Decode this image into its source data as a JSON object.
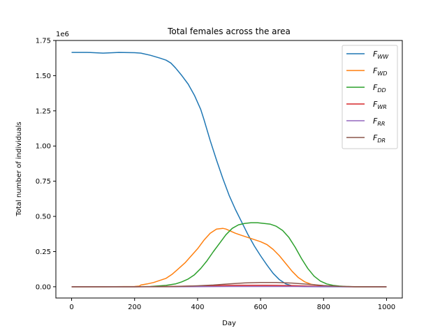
{
  "chart_data": {
    "type": "line",
    "title": "Total females across the area",
    "xlabel": "Day",
    "ylabel": "Total number of individuals",
    "y_multiplier_label": "1e6",
    "xlim": [
      -50,
      1050
    ],
    "ylim": [
      -0.08,
      1.75
    ],
    "x_ticks": [
      0,
      200,
      400,
      600,
      800,
      1000
    ],
    "y_ticks": [
      0.0,
      0.25,
      0.5,
      0.75,
      1.0,
      1.25,
      1.5,
      1.75
    ],
    "y_tick_labels": [
      "0.00",
      "0.25",
      "0.50",
      "0.75",
      "1.00",
      "1.25",
      "1.50",
      "1.75"
    ],
    "x_tick_labels": [
      "0",
      "200",
      "400",
      "600",
      "800",
      "1000"
    ],
    "grid": false,
    "legend_position": "top-right",
    "series": [
      {
        "name": "F_WW",
        "label_main": "F",
        "label_sub": "WW",
        "color": "#1f77b4",
        "x": [
          0,
          50,
          100,
          150,
          200,
          220,
          250,
          280,
          300,
          315,
          330,
          350,
          370,
          390,
          400,
          410,
          420,
          440,
          460,
          480,
          500,
          520,
          540,
          560,
          580,
          600,
          620,
          640,
          660,
          680,
          700,
          720,
          750,
          800,
          850,
          900,
          1000
        ],
        "y": [
          1.665,
          1.665,
          1.66,
          1.665,
          1.663,
          1.66,
          1.645,
          1.625,
          1.61,
          1.59,
          1.555,
          1.5,
          1.44,
          1.36,
          1.31,
          1.26,
          1.19,
          1.04,
          0.9,
          0.77,
          0.65,
          0.55,
          0.46,
          0.37,
          0.29,
          0.22,
          0.155,
          0.095,
          0.05,
          0.02,
          0.007,
          0.003,
          0.001,
          0.0,
          0.0,
          0.0,
          0.0
        ]
      },
      {
        "name": "F_WD",
        "label_main": "F",
        "label_sub": "WD",
        "color": "#ff7f0e",
        "x": [
          0,
          100,
          200,
          215,
          220,
          240,
          260,
          280,
          300,
          320,
          340,
          360,
          380,
          400,
          420,
          440,
          460,
          480,
          490,
          500,
          520,
          540,
          560,
          580,
          600,
          620,
          640,
          660,
          680,
          700,
          720,
          740,
          760,
          800,
          850,
          900,
          1000
        ],
        "y": [
          0.0,
          0.0,
          0.002,
          0.005,
          0.012,
          0.02,
          0.03,
          0.045,
          0.06,
          0.09,
          0.13,
          0.17,
          0.22,
          0.27,
          0.33,
          0.38,
          0.41,
          0.415,
          0.41,
          0.4,
          0.38,
          0.365,
          0.35,
          0.335,
          0.32,
          0.3,
          0.265,
          0.22,
          0.165,
          0.11,
          0.065,
          0.035,
          0.018,
          0.005,
          0.001,
          0.0,
          0.0
        ]
      },
      {
        "name": "F_DD",
        "label_main": "F",
        "label_sub": "DD",
        "color": "#2ca02c",
        "x": [
          0,
          100,
          200,
          250,
          300,
          330,
          350,
          370,
          390,
          410,
          430,
          450,
          470,
          490,
          510,
          530,
          550,
          570,
          590,
          610,
          630,
          650,
          670,
          690,
          710,
          730,
          750,
          770,
          790,
          810,
          830,
          850,
          870,
          900,
          950,
          1000
        ],
        "y": [
          0.0,
          0.0,
          0.0,
          0.002,
          0.01,
          0.02,
          0.035,
          0.055,
          0.085,
          0.13,
          0.185,
          0.25,
          0.31,
          0.37,
          0.415,
          0.44,
          0.45,
          0.455,
          0.455,
          0.45,
          0.445,
          0.43,
          0.4,
          0.35,
          0.28,
          0.2,
          0.13,
          0.075,
          0.04,
          0.02,
          0.01,
          0.005,
          0.002,
          0.0,
          0.0,
          0.0
        ]
      },
      {
        "name": "F_WR",
        "label_main": "F",
        "label_sub": "WR",
        "color": "#d62728",
        "x": [
          0,
          200,
          300,
          350,
          400,
          450,
          500,
          550,
          600,
          650,
          700,
          750,
          800,
          850,
          900,
          1000
        ],
        "y": [
          0.0,
          0.0,
          0.002,
          0.004,
          0.006,
          0.008,
          0.01,
          0.011,
          0.011,
          0.01,
          0.008,
          0.005,
          0.003,
          0.001,
          0.0,
          0.0
        ]
      },
      {
        "name": "F_RR",
        "label_main": "F",
        "label_sub": "RR",
        "color": "#9467bd",
        "x": [
          0,
          300,
          400,
          500,
          600,
          700,
          800,
          900,
          1000
        ],
        "y": [
          0.0,
          0.0,
          0.001,
          0.002,
          0.002,
          0.002,
          0.001,
          0.0,
          0.0
        ]
      },
      {
        "name": "F_DR",
        "label_main": "F",
        "label_sub": "DR",
        "color": "#8c564b",
        "x": [
          0,
          200,
          300,
          350,
          400,
          450,
          500,
          550,
          600,
          650,
          700,
          750,
          800,
          850,
          900,
          1000
        ],
        "y": [
          0.0,
          0.0,
          0.001,
          0.003,
          0.007,
          0.012,
          0.02,
          0.027,
          0.03,
          0.03,
          0.026,
          0.018,
          0.009,
          0.003,
          0.001,
          0.0
        ]
      }
    ]
  }
}
